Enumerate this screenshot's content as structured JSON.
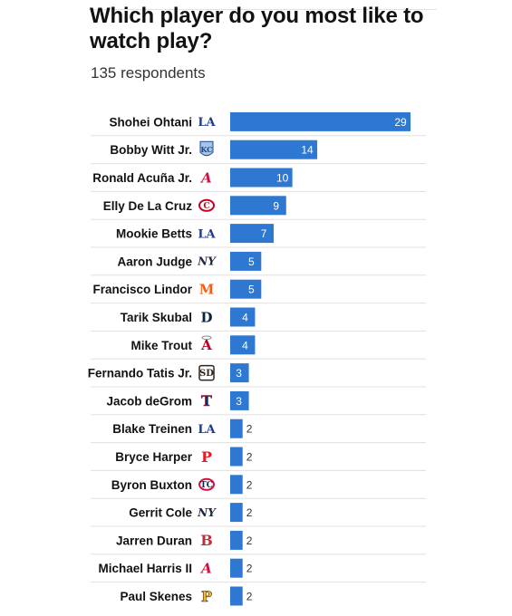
{
  "title": "Which player do you most like to watch play?",
  "subtitle": "135 respondents",
  "colors": {
    "bar": "#2f78d2",
    "row_divider": "#e0e0e0"
  },
  "chart_data": {
    "type": "bar",
    "orientation": "horizontal",
    "title": "Which player do you most like to watch play?",
    "subtitle": "135 respondents",
    "categories": [
      "Shohei Ohtani",
      "Bobby Witt Jr.",
      "Ronald Acuña Jr.",
      "Elly De La Cruz",
      "Mookie Betts",
      "Aaron Judge",
      "Francisco Lindor",
      "Tarik Skubal",
      "Mike Trout",
      "Fernando Tatis Jr.",
      "Jacob deGrom",
      "Blake Treinen",
      "Bryce Harper",
      "Byron Buxton",
      "Gerrit Cole",
      "Jarren Duran",
      "Michael Harris II",
      "Paul Skenes"
    ],
    "values": [
      29,
      14,
      10,
      9,
      7,
      5,
      5,
      4,
      4,
      3,
      3,
      2,
      2,
      2,
      2,
      2,
      2,
      2
    ],
    "team_logos": [
      "dodgers-logo",
      "royals-logo",
      "braves-logo",
      "reds-logo",
      "dodgers-logo",
      "yankees-logo",
      "mets-logo",
      "tigers-logo",
      "angels-logo",
      "padres-logo",
      "rangers-logo",
      "dodgers-logo",
      "phillies-logo",
      "twins-logo",
      "yankees-logo",
      "red-sox-logo",
      "braves-logo",
      "pirates-logo"
    ],
    "xlim": [
      0,
      29
    ],
    "grid": false,
    "legend": "none"
  }
}
